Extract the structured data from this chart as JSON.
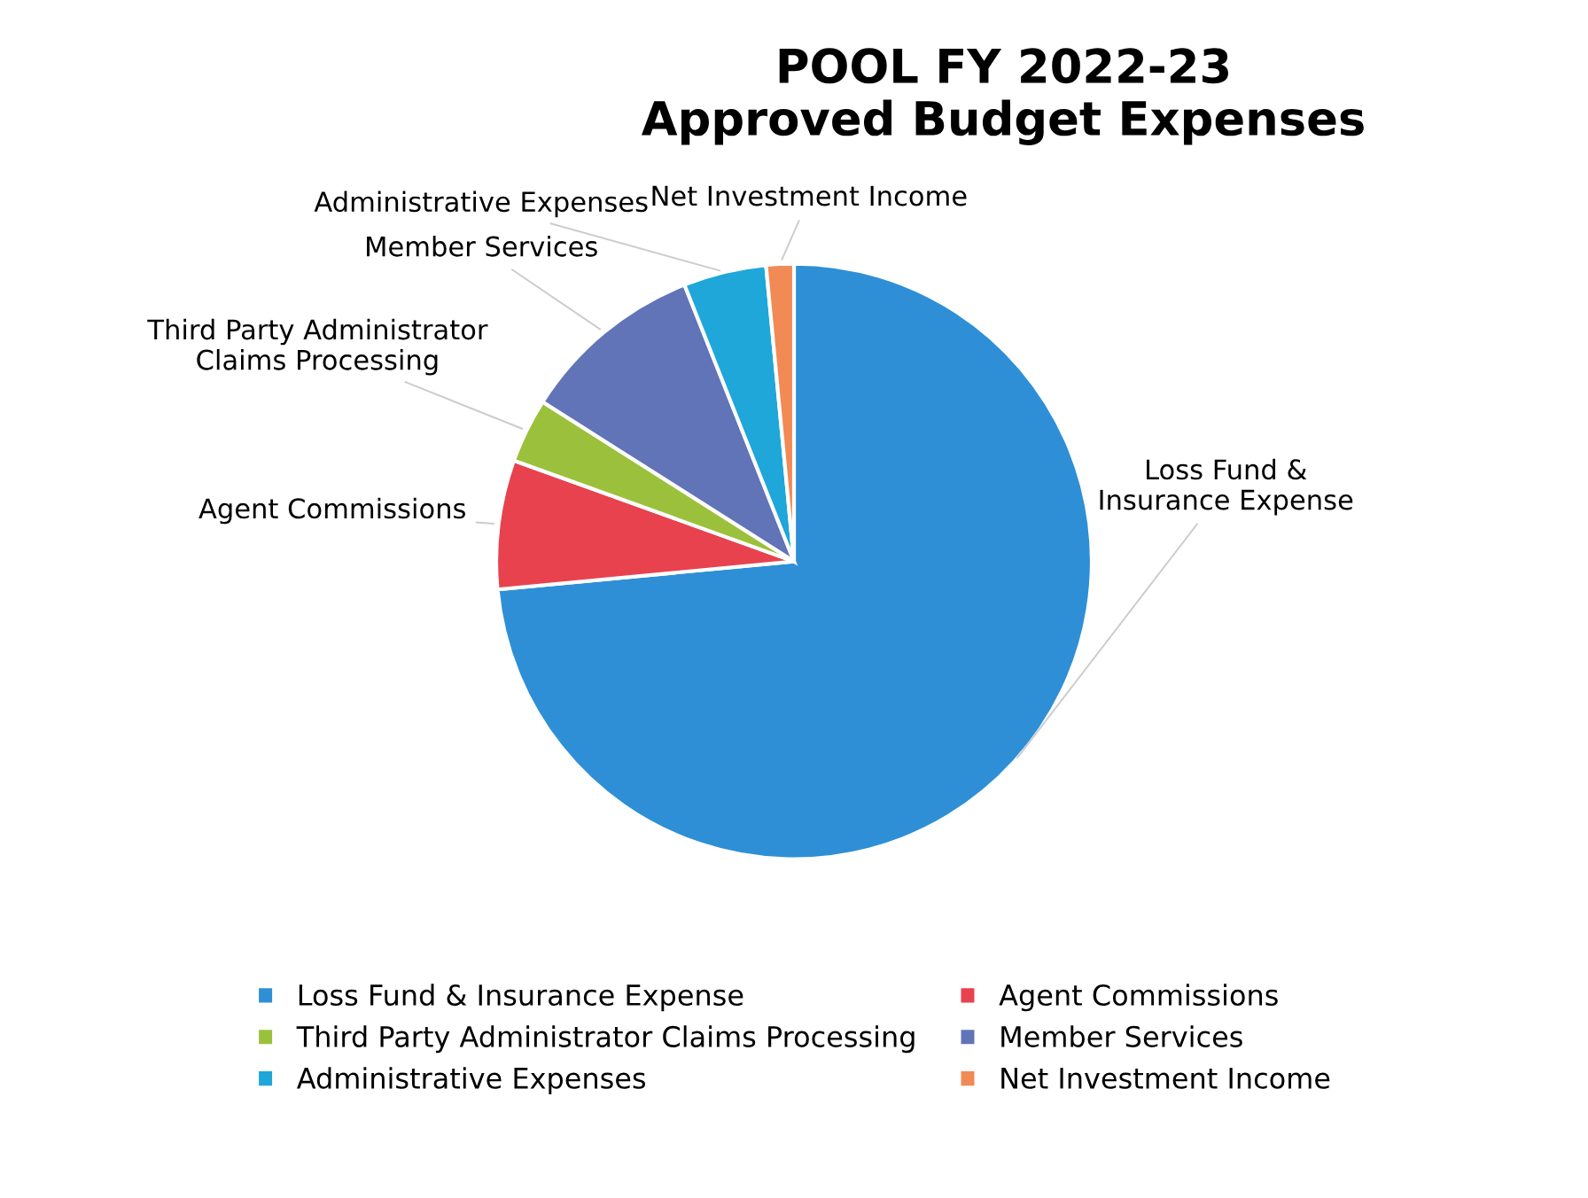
{
  "chart_data": {
    "type": "pie",
    "title": "POOL FY 2022-23\nApproved Budget Expenses",
    "categories": [
      "Loss Fund & Insurance Expense",
      "Agent Commissions",
      "Third Party Administrator Claims Processing",
      "Member Services",
      "Administrative Expenses",
      "Net Investment Income"
    ],
    "values": [
      73.5,
      7,
      3.5,
      10,
      4.5,
      1.5
    ],
    "colors": [
      "#2e8fd6",
      "#e8424f",
      "#9bc13c",
      "#6174b8",
      "#1ea7d8",
      "#f28a55"
    ],
    "legend": "bottom"
  }
}
